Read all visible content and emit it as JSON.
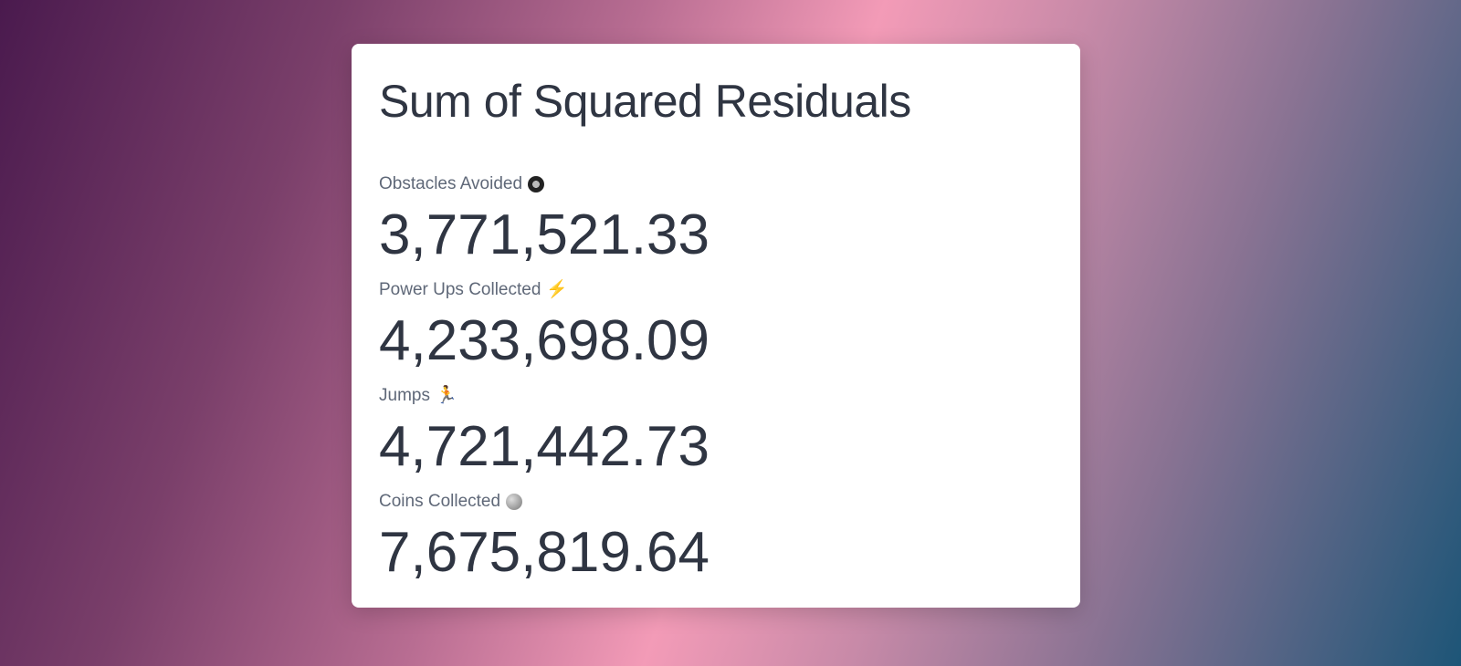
{
  "card": {
    "title": "Sum of Squared Residuals",
    "stats": [
      {
        "label": "Obstacles Avoided",
        "icon": "tire-icon",
        "glyph": "",
        "value": "3,771,521.33"
      },
      {
        "label": "Power Ups Collected",
        "icon": "lightning-icon",
        "glyph": "⚡",
        "value": "4,233,698.09"
      },
      {
        "label": "Jumps",
        "icon": "runner-icon",
        "glyph": "🏃",
        "value": "4,721,442.73"
      },
      {
        "label": "Coins Collected",
        "icon": "coin-icon",
        "glyph": "",
        "value": "7,675,819.64"
      }
    ]
  }
}
